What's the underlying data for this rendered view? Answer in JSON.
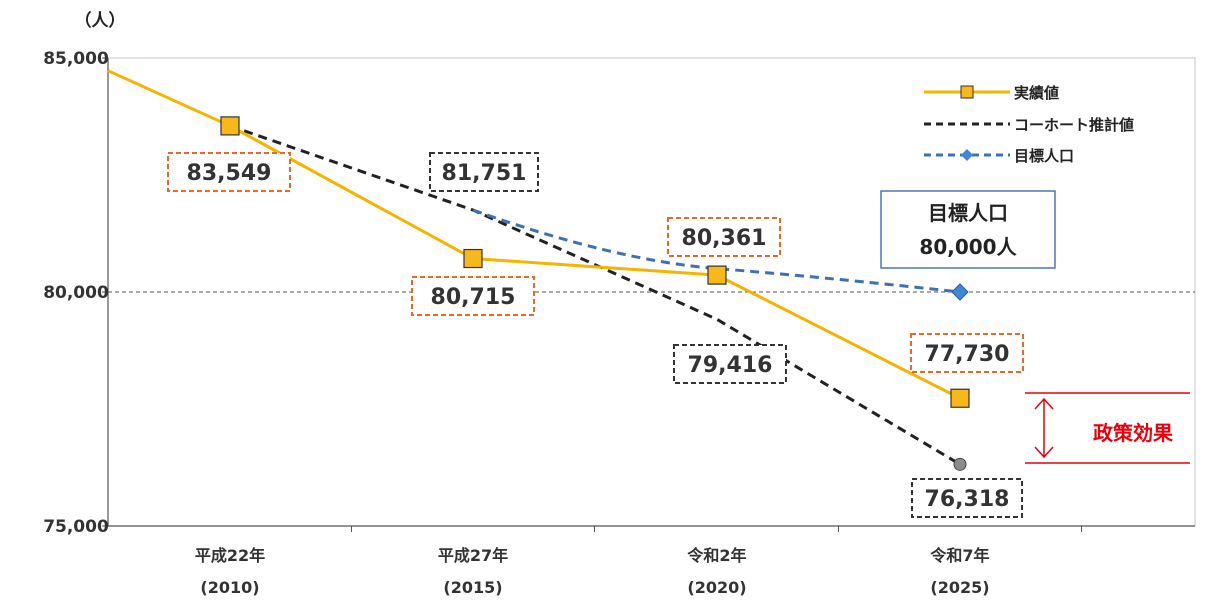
{
  "chart_data": {
    "type": "line",
    "y_unit": "（人）",
    "ylim": [
      75000,
      85000
    ],
    "y_ticks": [
      "75,000",
      "80,000",
      "85,000"
    ],
    "categories": [
      {
        "label": "平成22年",
        "year": "(2010)"
      },
      {
        "label": "平成27年",
        "year": "(2015)"
      },
      {
        "label": "令和2年",
        "year": "(2020)"
      },
      {
        "label": "令和7年",
        "year": "(2025)"
      }
    ],
    "reference_line": 80000,
    "series": [
      {
        "name": "実績値",
        "color": "#f5b400",
        "style": "solid",
        "marker": "square",
        "values": [
          83549,
          80715,
          80361,
          77730
        ],
        "labels": [
          "83,549",
          "80,715",
          "80,361",
          "77,730"
        ],
        "leading_value": 84900
      },
      {
        "name": "コーホート推計値",
        "color": "#222222",
        "style": "dashed",
        "marker": "circle",
        "values": [
          83549,
          81751,
          79416,
          76318
        ],
        "labels": [
          "",
          "81,751",
          "79,416",
          "76,318"
        ]
      },
      {
        "name": "目標人口",
        "color": "#3f6fb5",
        "style": "dashed",
        "marker": "diamond",
        "values": [
          null,
          81751,
          80500,
          80000
        ],
        "labels": []
      }
    ],
    "annotations": {
      "target_title": "目標人口",
      "target_value": "80,000人",
      "policy_effect": "政策効果"
    },
    "legend_position": "top-right",
    "grid": false
  }
}
